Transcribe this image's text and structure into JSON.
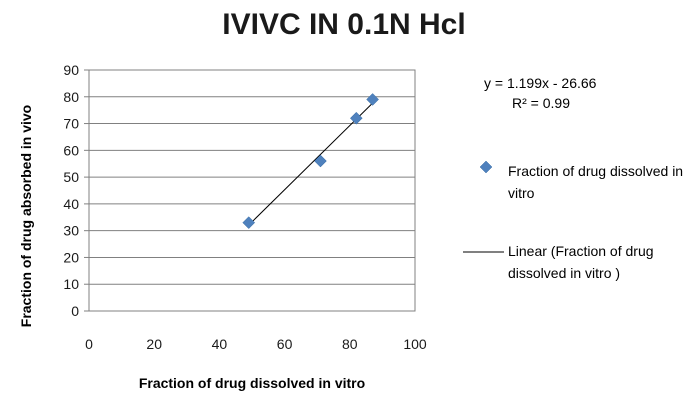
{
  "chart_data": {
    "type": "scatter",
    "title": "IVIVC IN 0.1N Hcl",
    "xlabel": "Fraction of drug dissolved  in vitro",
    "ylabel": "Fraction of drug absorbed  in vivo",
    "xlim": [
      0,
      100
    ],
    "ylim": [
      0,
      90
    ],
    "x_ticks": [
      "0",
      "20",
      "40",
      "60",
      "80",
      "100"
    ],
    "y_ticks": [
      "0",
      "10",
      "20",
      "30",
      "40",
      "50",
      "60",
      "70",
      "80",
      "90"
    ],
    "grid": "horizontal",
    "legend_position": "right",
    "series": [
      {
        "name": "Fraction of drug dissolved in vitro",
        "marker": "diamond",
        "color": "#4F81BD",
        "x": [
          49,
          71,
          82,
          87
        ],
        "y": [
          33,
          56,
          72,
          79
        ]
      }
    ],
    "trendline": {
      "name": "Linear (Fraction of drug dissolved in vitro )",
      "color": "#000000",
      "slope": 1.199,
      "intercept": -26.66,
      "x_range": [
        49,
        88
      ],
      "equation": "y = 1.199x - 26.66",
      "r_squared": "R² = 0.99"
    }
  }
}
